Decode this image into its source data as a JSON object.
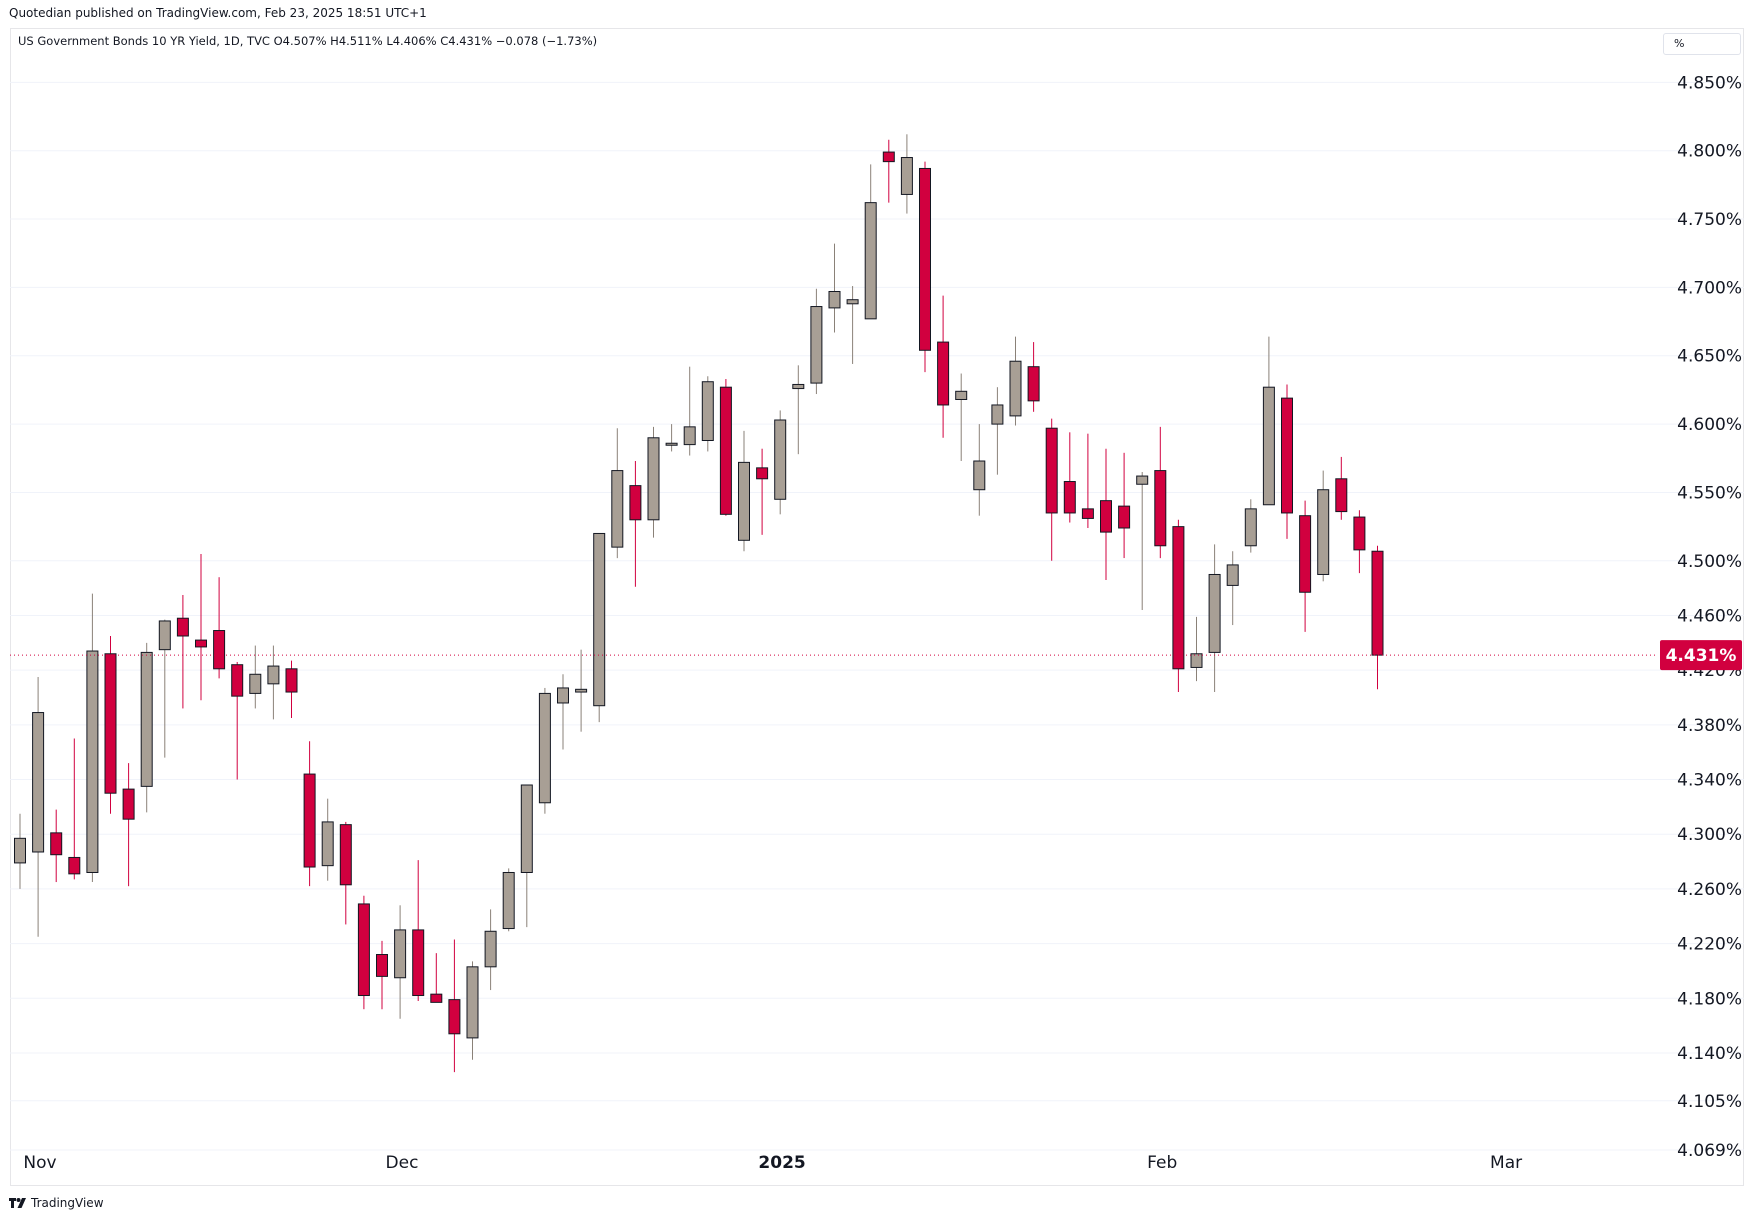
{
  "header": {
    "published": "Quotedian published on TradingView.com, Feb 23, 2025 18:51 UTC+1"
  },
  "legend": {
    "text": "US Government Bonds 10 YR Yield, 1D, TVC  O4.507%  H4.511%  L4.406%  C4.431%  −0.078 (−1.73%)"
  },
  "unit_label": "%",
  "footer": {
    "brand": "TradingView"
  },
  "colors": {
    "up": "#a89f95",
    "down": "#d1003f",
    "wick_up": "#8a8178",
    "wick_down": "#d1003f",
    "grid": "#f0f3fa",
    "price_badge": "#d1003f"
  },
  "chart_data": {
    "type": "candlestick",
    "ylim": [
      4.069,
      4.87
    ],
    "y_ticks": [
      "4.850%",
      "4.800%",
      "4.750%",
      "4.700%",
      "4.650%",
      "4.600%",
      "4.550%",
      "4.500%",
      "4.460%",
      "4.420%",
      "4.380%",
      "4.340%",
      "4.300%",
      "4.260%",
      "4.220%",
      "4.180%",
      "4.140%",
      "4.105%",
      "4.069%"
    ],
    "x_labels": [
      {
        "label": "Nov",
        "index": 0
      },
      {
        "label": "Dec",
        "index": 20
      },
      {
        "label": "2025",
        "index": 41
      },
      {
        "label": "Feb",
        "index": 62
      },
      {
        "label": "Mar",
        "index": 81
      }
    ],
    "last_price": "4.431%",
    "last_close": 4.431,
    "ohlc": [
      [
        4.279,
        4.315,
        4.26,
        4.297
      ],
      [
        4.287,
        4.415,
        4.225,
        4.389
      ],
      [
        4.301,
        4.318,
        4.265,
        4.285
      ],
      [
        4.283,
        4.37,
        4.267,
        4.271
      ],
      [
        4.272,
        4.476,
        4.265,
        4.434
      ],
      [
        4.432,
        4.445,
        4.315,
        4.33
      ],
      [
        4.333,
        4.352,
        4.262,
        4.311
      ],
      [
        4.335,
        4.44,
        4.316,
        4.433
      ],
      [
        4.435,
        4.457,
        4.356,
        4.456
      ],
      [
        4.458,
        4.475,
        4.392,
        4.445
      ],
      [
        4.442,
        4.505,
        4.398,
        4.437
      ],
      [
        4.449,
        4.488,
        4.414,
        4.421
      ],
      [
        4.424,
        4.426,
        4.34,
        4.401
      ],
      [
        4.403,
        4.438,
        4.392,
        4.417
      ],
      [
        4.41,
        4.438,
        4.384,
        4.423
      ],
      [
        4.421,
        4.427,
        4.385,
        4.404
      ],
      [
        4.344,
        4.368,
        4.262,
        4.276
      ],
      [
        4.277,
        4.326,
        4.266,
        4.309
      ],
      [
        4.307,
        4.309,
        4.234,
        4.263
      ],
      [
        4.249,
        4.255,
        4.172,
        4.182
      ],
      [
        4.212,
        4.222,
        4.172,
        4.196
      ],
      [
        4.195,
        4.248,
        4.165,
        4.23
      ],
      [
        4.23,
        4.281,
        4.178,
        4.182
      ],
      [
        4.183,
        4.213,
        4.178,
        4.177
      ],
      [
        4.179,
        4.223,
        4.126,
        4.154
      ],
      [
        4.151,
        4.207,
        4.135,
        4.203
      ],
      [
        4.203,
        4.245,
        4.186,
        4.229
      ],
      [
        4.231,
        4.275,
        4.229,
        4.272
      ],
      [
        4.272,
        4.336,
        4.232,
        4.336
      ],
      [
        4.323,
        4.407,
        4.315,
        4.403
      ],
      [
        4.396,
        4.417,
        4.362,
        4.407
      ],
      [
        4.404,
        4.435,
        4.375,
        4.406
      ],
      [
        4.394,
        4.518,
        4.382,
        4.52
      ],
      [
        4.51,
        4.597,
        4.502,
        4.566
      ],
      [
        4.555,
        4.573,
        4.481,
        4.53
      ],
      [
        4.53,
        4.598,
        4.517,
        4.59
      ],
      [
        4.585,
        4.6,
        4.58,
        4.586
      ],
      [
        4.585,
        4.642,
        4.577,
        4.598
      ],
      [
        4.588,
        4.635,
        4.58,
        4.631
      ],
      [
        4.627,
        4.633,
        4.533,
        4.534
      ],
      [
        4.515,
        4.595,
        4.507,
        4.572
      ],
      [
        4.568,
        4.582,
        4.519,
        4.56
      ],
      [
        4.545,
        4.61,
        4.534,
        4.603
      ],
      [
        4.626,
        4.643,
        4.578,
        4.629
      ],
      [
        4.63,
        4.699,
        4.622,
        4.686
      ],
      [
        4.685,
        4.732,
        4.667,
        4.697
      ],
      [
        4.688,
        4.701,
        4.644,
        4.691
      ],
      [
        4.677,
        4.79,
        4.677,
        4.762
      ],
      [
        4.799,
        4.808,
        4.762,
        4.792
      ],
      [
        4.768,
        4.812,
        4.754,
        4.795
      ],
      [
        4.787,
        4.792,
        4.638,
        4.654
      ],
      [
        4.66,
        4.694,
        4.59,
        4.614
      ],
      [
        4.618,
        4.637,
        4.573,
        4.624
      ],
      [
        4.552,
        4.6,
        4.533,
        4.573
      ],
      [
        4.6,
        4.627,
        4.563,
        4.614
      ],
      [
        4.606,
        4.664,
        4.599,
        4.646
      ],
      [
        4.642,
        4.66,
        4.609,
        4.617
      ],
      [
        4.597,
        4.604,
        4.5,
        4.535
      ],
      [
        4.558,
        4.594,
        4.528,
        4.535
      ],
      [
        4.538,
        4.593,
        4.524,
        4.531
      ],
      [
        4.544,
        4.582,
        4.486,
        4.521
      ],
      [
        4.54,
        4.579,
        4.502,
        4.524
      ],
      [
        4.556,
        4.565,
        4.464,
        4.562
      ],
      [
        4.566,
        4.598,
        4.502,
        4.511
      ],
      [
        4.525,
        4.53,
        4.404,
        4.421
      ],
      [
        4.422,
        4.459,
        4.412,
        4.432
      ],
      [
        4.433,
        4.512,
        4.404,
        4.49
      ],
      [
        4.482,
        4.507,
        4.453,
        4.497
      ],
      [
        4.511,
        4.545,
        4.506,
        4.538
      ],
      [
        4.541,
        4.664,
        4.541,
        4.627
      ],
      [
        4.619,
        4.629,
        4.516,
        4.535
      ],
      [
        4.533,
        4.544,
        4.448,
        4.477
      ],
      [
        4.49,
        4.566,
        4.485,
        4.552
      ],
      [
        4.56,
        4.576,
        4.53,
        4.536
      ],
      [
        4.532,
        4.537,
        4.491,
        4.508
      ],
      [
        4.507,
        4.511,
        4.406,
        4.431
      ]
    ]
  }
}
